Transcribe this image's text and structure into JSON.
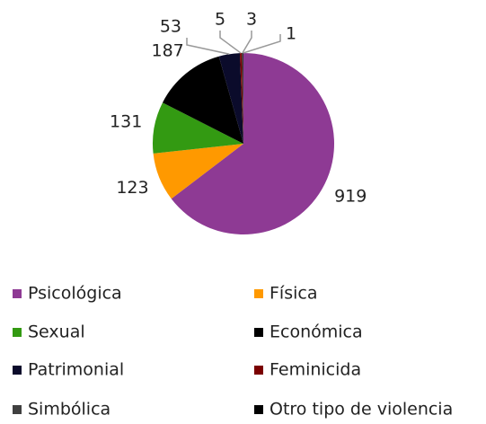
{
  "chart_data": {
    "type": "pie",
    "categories": [
      "Psicológica",
      "Física",
      "Sexual",
      "Económica",
      "Patrimonial",
      "Feminicida",
      "Simbólica",
      "Otro tipo de violencia"
    ],
    "values": [
      919,
      123,
      131,
      187,
      53,
      5,
      3,
      1
    ],
    "colors": [
      "#8e3a94",
      "#ff9900",
      "#339a12",
      "#000000",
      "#0b0b2b",
      "#7a0000",
      "#404040",
      "#000000"
    ],
    "legend": "bottom"
  }
}
